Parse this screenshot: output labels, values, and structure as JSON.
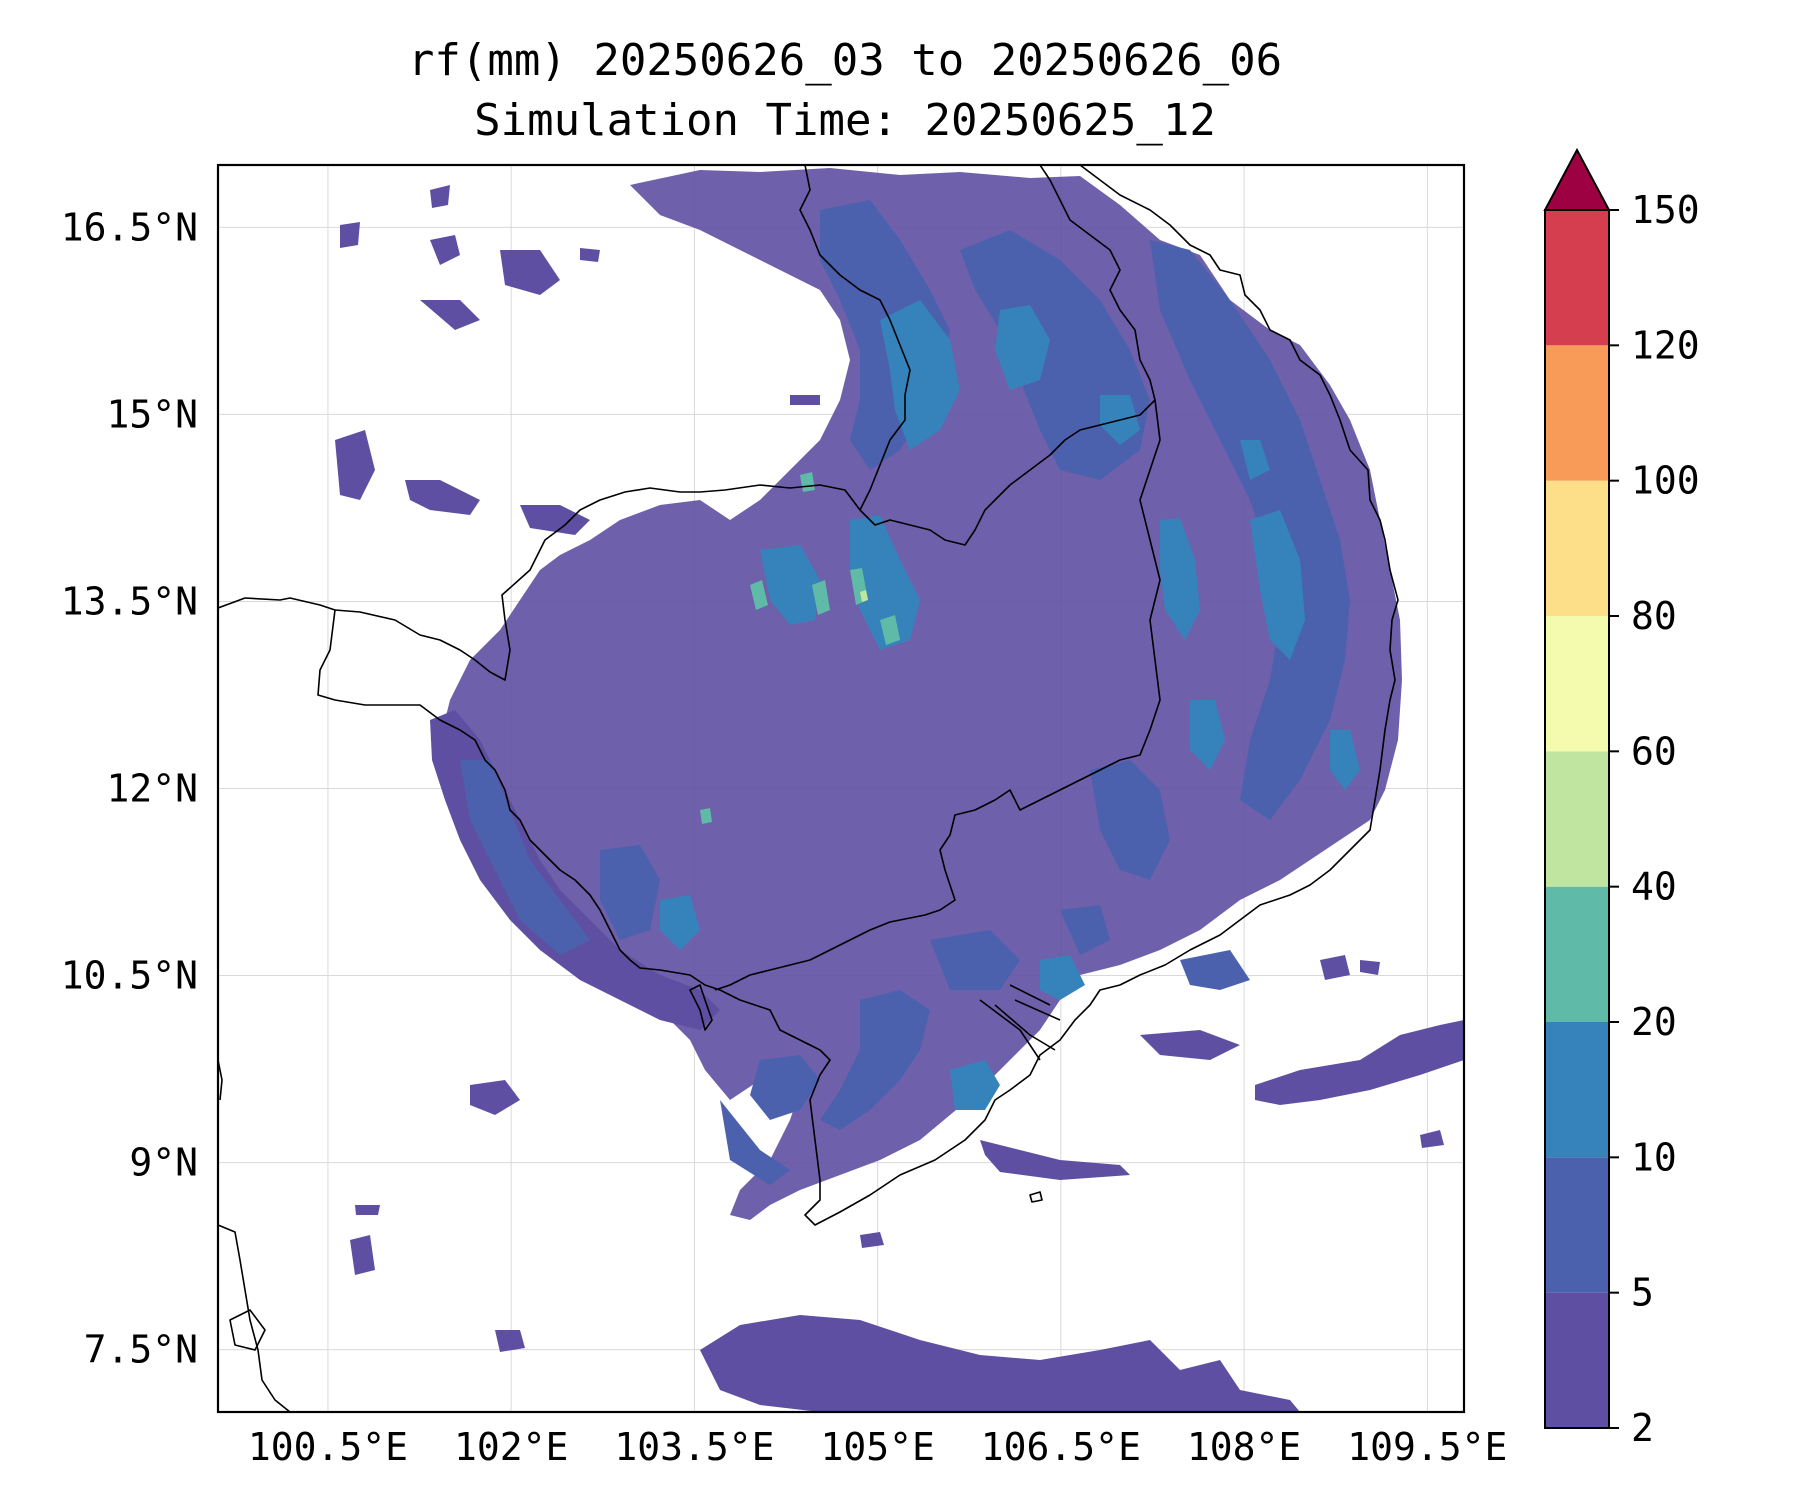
{
  "title": {
    "line1": "rf(mm) 20250626_03 to 20250626_06",
    "line2": "Simulation Time: 20250625_12"
  },
  "map": {
    "projection": "PlateCarree",
    "lon_range": [
      99.6,
      109.8
    ],
    "lat_range": [
      7.0,
      17.0
    ],
    "gridlines": true,
    "coastlines": true,
    "borders": true,
    "lon_ticks": [
      100.5,
      102,
      103.5,
      105,
      106.5,
      108,
      109.5
    ],
    "lon_tick_labels": [
      "100.5°E",
      "102°E",
      "103.5°E",
      "105°E",
      "106.5°E",
      "108°E",
      "109.5°E"
    ],
    "lat_ticks": [
      7.5,
      9,
      10.5,
      12,
      13.5,
      15,
      16.5
    ],
    "lat_tick_labels": [
      "7.5°N",
      "9°N",
      "10.5°N",
      "12°N",
      "13.5°N",
      "15°N",
      "16.5°N"
    ]
  },
  "colorbar": {
    "levels": [
      2,
      5,
      10,
      20,
      40,
      60,
      80,
      100,
      120,
      150
    ],
    "level_labels": [
      "2",
      "5",
      "10",
      "20",
      "40",
      "60",
      "80",
      "100",
      "120",
      "150"
    ],
    "colors": [
      "#5e4fa2",
      "#4b61ad",
      "#3683bb",
      "#5fbaa8",
      "#bfe5a0",
      "#f4faae",
      "#fddf8a",
      "#f99b58",
      "#d53e4f"
    ],
    "extend": "max",
    "extend_color": "#9e0142",
    "orientation": "vertical",
    "placement": "right"
  },
  "colors": {
    "rain_2_5": "#5e4fa2",
    "rain_5_10": "#4b61ad",
    "rain_10_20": "#3683bb",
    "rain_20_40": "#5fbaa8",
    "rain_40_60": "#bfe5a0",
    "coastline": "#000000",
    "gridline": "#d9d9d9"
  }
}
